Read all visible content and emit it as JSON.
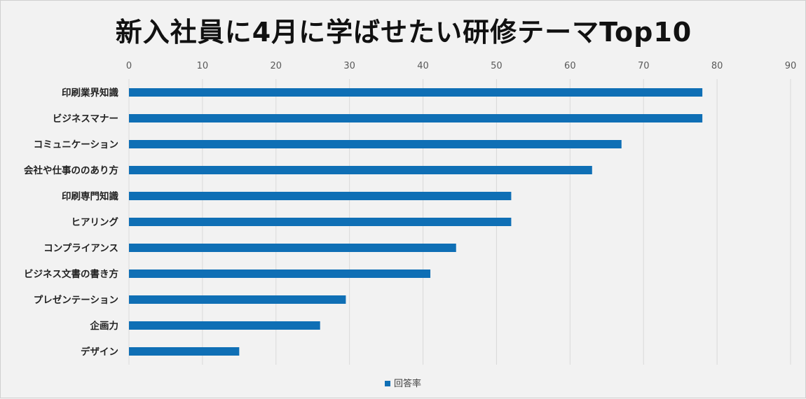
{
  "chart_data": {
    "type": "bar",
    "orientation": "horizontal",
    "title": "新入社員に4月に学ばせたい研修テーマTop10",
    "categories": [
      "印刷業界知識",
      "ビジネスマナー",
      "コミュニケーション",
      "会社や仕事ののあり方",
      "印刷専門知識",
      "ヒアリング",
      "コンプライアンス",
      "ビジネス文書の書き方",
      "プレゼンテーション",
      "企画力",
      "デザイン"
    ],
    "series": [
      {
        "name": "回答率",
        "values": [
          78,
          78,
          67,
          63,
          52,
          52,
          44.5,
          41,
          29.5,
          26,
          15
        ]
      }
    ],
    "xlim": [
      0,
      90
    ],
    "xticks": [
      0,
      10,
      20,
      30,
      40,
      50,
      60,
      70,
      80,
      90
    ],
    "xaxis_position": "top",
    "grid": true,
    "legend": "bottom",
    "bar_color": "#0f6fb5"
  }
}
